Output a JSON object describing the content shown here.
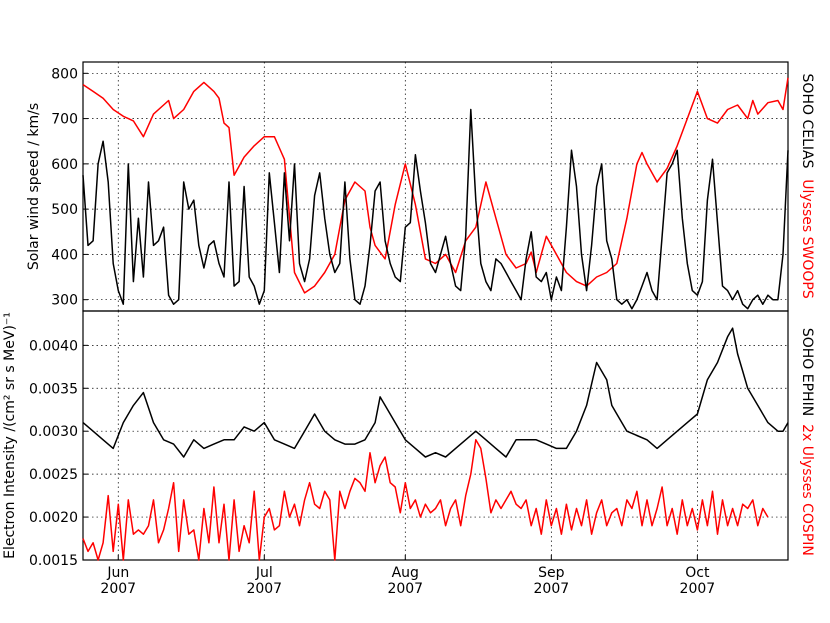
{
  "chart_data": [
    {
      "type": "line",
      "ylabel": "Solar wind speed / km/s",
      "ylim": [
        275,
        825
      ],
      "yticks": [
        300,
        400,
        500,
        600,
        700,
        800
      ],
      "grid": true,
      "side_labels": [
        {
          "text": "SOHO CELIAS",
          "color": "#000000"
        },
        {
          "text": "Ulysses SWOOPS",
          "color": "#ff0000"
        }
      ],
      "series": [
        {
          "color": "#ff0000",
          "x": [
            0,
            2,
            4,
            6,
            8,
            10,
            12,
            14,
            16,
            17,
            18,
            20,
            22,
            24,
            26,
            27,
            28,
            29,
            30,
            32,
            34,
            36,
            38,
            39,
            40,
            42,
            44,
            46,
            48,
            50,
            52,
            54,
            56,
            57,
            58,
            60,
            62,
            64,
            66,
            68,
            70,
            72,
            74,
            76,
            78,
            80,
            82,
            84,
            86,
            88,
            89,
            90,
            92,
            94,
            96,
            98,
            100,
            102,
            104,
            106,
            108,
            110,
            111,
            112,
            114,
            116,
            118,
            120,
            122,
            124,
            126,
            128,
            130,
            132,
            133,
            134,
            136,
            138,
            139,
            140
          ],
          "y": [
            775,
            760,
            745,
            720,
            705,
            695,
            660,
            710,
            730,
            740,
            700,
            720,
            760,
            780,
            760,
            745,
            690,
            680,
            575,
            615,
            640,
            660,
            660,
            635,
            610,
            360,
            315,
            330,
            360,
            400,
            520,
            560,
            540,
            460,
            420,
            390,
            510,
            600,
            510,
            390,
            380,
            400,
            360,
            430,
            460,
            560,
            480,
            400,
            370,
            380,
            405,
            360,
            440,
            400,
            360,
            340,
            330,
            350,
            360,
            380,
            480,
            600,
            625,
            600,
            560,
            590,
            640,
            700,
            760,
            700,
            690,
            720,
            730,
            700,
            740,
            710,
            735,
            740,
            720,
            790
          ]
        },
        {
          "color": "#000000",
          "x": [
            0,
            1,
            2,
            3,
            4,
            5,
            6,
            7,
            8,
            9,
            10,
            11,
            12,
            13,
            14,
            15,
            16,
            17,
            18,
            19,
            20,
            21,
            22,
            23,
            24,
            25,
            26,
            27,
            28,
            29,
            30,
            31,
            32,
            33,
            34,
            35,
            36,
            37,
            38,
            39,
            40,
            41,
            42,
            43,
            44,
            45,
            46,
            47,
            48,
            49,
            50,
            51,
            52,
            53,
            54,
            55,
            56,
            57,
            58,
            59,
            60,
            61,
            62,
            63,
            64,
            65,
            66,
            67,
            68,
            69,
            70,
            71,
            72,
            73,
            74,
            75,
            76,
            77,
            78,
            79,
            80,
            81,
            82,
            83,
            84,
            85,
            86,
            87,
            88,
            89,
            90,
            91,
            92,
            93,
            94,
            95,
            96,
            97,
            98,
            99,
            100,
            101,
            102,
            103,
            104,
            105,
            106,
            107,
            108,
            109,
            110,
            111,
            112,
            113,
            114,
            115,
            116,
            117,
            118,
            119,
            120,
            121,
            122,
            123,
            124,
            125,
            126,
            127,
            128,
            129,
            130,
            131,
            132,
            133,
            134,
            135,
            136,
            137,
            138,
            139,
            140
          ],
          "y": [
            575,
            420,
            430,
            600,
            650,
            560,
            380,
            320,
            290,
            600,
            340,
            480,
            350,
            560,
            420,
            430,
            460,
            310,
            290,
            300,
            560,
            500,
            520,
            420,
            370,
            420,
            430,
            380,
            350,
            560,
            330,
            340,
            550,
            350,
            330,
            290,
            320,
            580,
            470,
            360,
            580,
            430,
            600,
            380,
            340,
            390,
            530,
            580,
            480,
            400,
            360,
            380,
            560,
            390,
            300,
            290,
            330,
            420,
            540,
            560,
            430,
            380,
            350,
            340,
            460,
            470,
            620,
            540,
            470,
            380,
            360,
            400,
            440,
            380,
            330,
            320,
            440,
            720,
            520,
            380,
            340,
            320,
            390,
            380,
            360,
            340,
            320,
            300,
            390,
            450,
            350,
            340,
            360,
            300,
            350,
            320,
            460,
            630,
            550,
            400,
            320,
            420,
            550,
            600,
            430,
            390,
            300,
            290,
            300,
            280,
            300,
            330,
            360,
            320,
            300,
            440,
            580,
            600,
            630,
            480,
            380,
            320,
            310,
            340,
            520,
            610,
            470,
            330,
            320,
            300,
            320,
            290,
            280,
            300,
            310,
            290,
            310,
            300,
            300,
            400,
            630
          ]
        }
      ]
    },
    {
      "type": "line",
      "ylabel": "Electron Intensity /(cm² sr s MeV)⁻¹",
      "ylim": [
        0.0015,
        0.0044
      ],
      "yticks": [
        0.0015,
        0.002,
        0.0025,
        0.003,
        0.0035,
        0.004
      ],
      "ytick_labels": [
        "0.0015",
        "0.0020",
        "0.0025",
        "0.0030",
        "0.0035",
        "0.0040"
      ],
      "grid": true,
      "side_labels": [
        {
          "text": "SOHO EPHIN",
          "color": "#000000"
        },
        {
          "text": "2x Ulysses COSPIN",
          "color": "#ff0000"
        }
      ],
      "series": [
        {
          "color": "#ff0000",
          "x": [
            0,
            1,
            2,
            3,
            4,
            5,
            6,
            7,
            8,
            9,
            10,
            11,
            12,
            13,
            14,
            15,
            16,
            17,
            18,
            19,
            20,
            21,
            22,
            23,
            24,
            25,
            26,
            27,
            28,
            29,
            30,
            31,
            32,
            33,
            34,
            35,
            36,
            37,
            38,
            39,
            40,
            41,
            42,
            43,
            44,
            45,
            46,
            47,
            48,
            49,
            50,
            51,
            52,
            53,
            54,
            55,
            56,
            57,
            58,
            59,
            60,
            61,
            62,
            63,
            64,
            65,
            66,
            67,
            68,
            69,
            70,
            71,
            72,
            73,
            74,
            75,
            76,
            77,
            78,
            79,
            80,
            81,
            82,
            83,
            84,
            85,
            86,
            87,
            88,
            89,
            90,
            91,
            92,
            93,
            94,
            95,
            96,
            97,
            98,
            99,
            100,
            101,
            102,
            103,
            104,
            105,
            106,
            107,
            108,
            109,
            110,
            111,
            112,
            113,
            114,
            115,
            116,
            117,
            118,
            119,
            120,
            121,
            122,
            123,
            124,
            125,
            126,
            127,
            128,
            129,
            130,
            131,
            132,
            133,
            134,
            135,
            136
          ],
          "y": [
            0.00175,
            0.0016,
            0.0017,
            0.0015,
            0.0017,
            0.00225,
            0.0016,
            0.00215,
            0.0015,
            0.0022,
            0.0018,
            0.00185,
            0.0018,
            0.0019,
            0.0022,
            0.0017,
            0.00185,
            0.0021,
            0.0024,
            0.0016,
            0.0022,
            0.0018,
            0.00185,
            0.0015,
            0.0021,
            0.0017,
            0.00235,
            0.0017,
            0.00215,
            0.0015,
            0.0022,
            0.0016,
            0.0019,
            0.0017,
            0.0023,
            0.0015,
            0.002,
            0.0021,
            0.00185,
            0.0019,
            0.0023,
            0.002,
            0.00215,
            0.0019,
            0.0022,
            0.0024,
            0.00215,
            0.0021,
            0.0023,
            0.0022,
            0.0015,
            0.0023,
            0.0021,
            0.0023,
            0.00245,
            0.0024,
            0.0023,
            0.00275,
            0.0024,
            0.0026,
            0.0027,
            0.0024,
            0.00235,
            0.00205,
            0.0024,
            0.0021,
            0.0022,
            0.002,
            0.00215,
            0.00205,
            0.0021,
            0.0022,
            0.0019,
            0.0021,
            0.0022,
            0.0019,
            0.00225,
            0.0025,
            0.0029,
            0.0028,
            0.00245,
            0.00205,
            0.0022,
            0.0021,
            0.0022,
            0.0023,
            0.00215,
            0.0021,
            0.0022,
            0.0019,
            0.0021,
            0.0018,
            0.0022,
            0.0019,
            0.0021,
            0.0018,
            0.00215,
            0.00185,
            0.0021,
            0.0019,
            0.0022,
            0.0018,
            0.00205,
            0.0022,
            0.0019,
            0.00205,
            0.0021,
            0.0019,
            0.0022,
            0.0021,
            0.0023,
            0.0019,
            0.0022,
            0.0019,
            0.0021,
            0.00235,
            0.0019,
            0.0021,
            0.0018,
            0.0022,
            0.0019,
            0.0021,
            0.00185,
            0.0022,
            0.0019,
            0.0023,
            0.0018,
            0.0022,
            0.0019,
            0.0021,
            0.0019,
            0.00215,
            0.0021,
            0.0022,
            0.0019,
            0.0021,
            0.002
          ]
        },
        {
          "color": "#000000",
          "x": [
            0,
            2,
            4,
            6,
            8,
            10,
            12,
            14,
            16,
            18,
            20,
            22,
            24,
            26,
            28,
            30,
            32,
            34,
            36,
            38,
            40,
            42,
            44,
            46,
            48,
            50,
            52,
            54,
            56,
            58,
            59,
            60,
            62,
            64,
            66,
            68,
            70,
            72,
            74,
            76,
            78,
            80,
            82,
            84,
            86,
            88,
            90,
            92,
            94,
            96,
            98,
            100,
            102,
            104,
            105,
            106,
            108,
            110,
            112,
            114,
            116,
            118,
            120,
            122,
            124,
            126,
            128,
            129,
            130,
            131,
            132,
            134,
            136,
            138,
            139,
            140
          ],
          "y": [
            0.0031,
            0.003,
            0.0029,
            0.0028,
            0.0031,
            0.0033,
            0.00345,
            0.0031,
            0.0029,
            0.00285,
            0.0027,
            0.0029,
            0.0028,
            0.00285,
            0.0029,
            0.0029,
            0.00305,
            0.003,
            0.0031,
            0.0029,
            0.00285,
            0.0028,
            0.003,
            0.0032,
            0.003,
            0.0029,
            0.00285,
            0.00285,
            0.0029,
            0.0031,
            0.0034,
            0.0033,
            0.0031,
            0.0029,
            0.0028,
            0.0027,
            0.00275,
            0.0027,
            0.0028,
            0.0029,
            0.003,
            0.0029,
            0.0028,
            0.0027,
            0.0029,
            0.0029,
            0.0029,
            0.00285,
            0.0028,
            0.0028,
            0.003,
            0.0033,
            0.0038,
            0.0036,
            0.0033,
            0.0032,
            0.003,
            0.00295,
            0.0029,
            0.0028,
            0.0029,
            0.003,
            0.0031,
            0.0032,
            0.0036,
            0.0038,
            0.0041,
            0.0042,
            0.0039,
            0.0037,
            0.0035,
            0.0033,
            0.0031,
            0.003,
            0.003,
            0.0031
          ]
        }
      ]
    }
  ],
  "x_axis": {
    "xlim": [
      0,
      140
    ],
    "ticks": [
      {
        "x": 7,
        "month": "Jun",
        "year": "2007"
      },
      {
        "x": 36,
        "month": "Jul",
        "year": "2007"
      },
      {
        "x": 64,
        "month": "Aug",
        "year": "2007"
      },
      {
        "x": 93,
        "month": "Sep",
        "year": "2007"
      },
      {
        "x": 122,
        "month": "Oct",
        "year": "2007"
      }
    ]
  }
}
